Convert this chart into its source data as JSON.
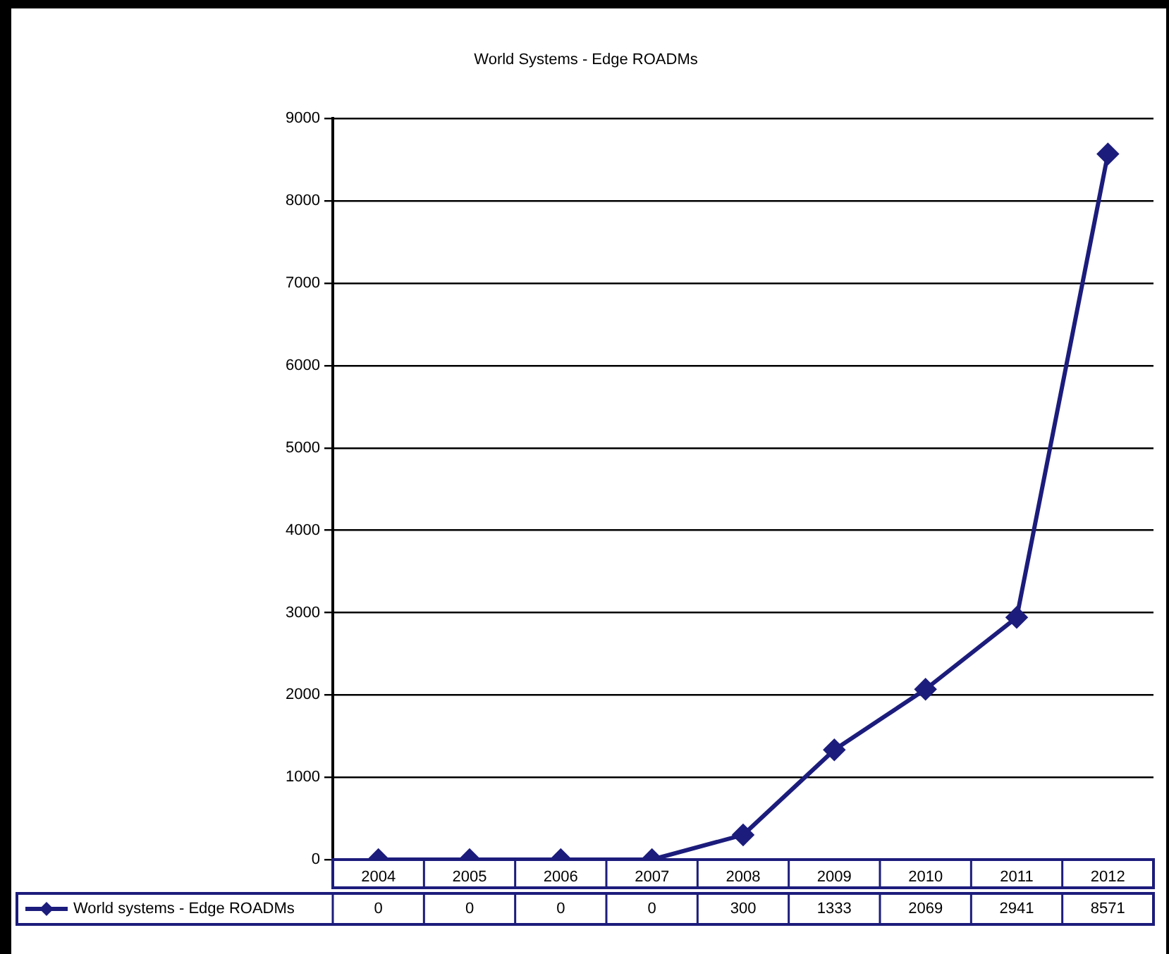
{
  "chart_data": {
    "type": "line",
    "title": "World Systems - Edge ROADMs",
    "categories": [
      "2004",
      "2005",
      "2006",
      "2007",
      "2008",
      "2009",
      "2010",
      "2011",
      "2012"
    ],
    "series": [
      {
        "name": "World systems - Edge ROADMs",
        "color": "#1c1c7c",
        "values": [
          0,
          0,
          0,
          0,
          300,
          1333,
          2069,
          2941,
          8571
        ]
      }
    ],
    "ylim": [
      0,
      9000
    ],
    "yticks": [
      0,
      1000,
      2000,
      3000,
      4000,
      5000,
      6000,
      7000,
      8000,
      9000
    ],
    "grid": "y",
    "legend": "bottom left",
    "marker": "diamond",
    "line_style": "solid",
    "data_labels": true
  }
}
